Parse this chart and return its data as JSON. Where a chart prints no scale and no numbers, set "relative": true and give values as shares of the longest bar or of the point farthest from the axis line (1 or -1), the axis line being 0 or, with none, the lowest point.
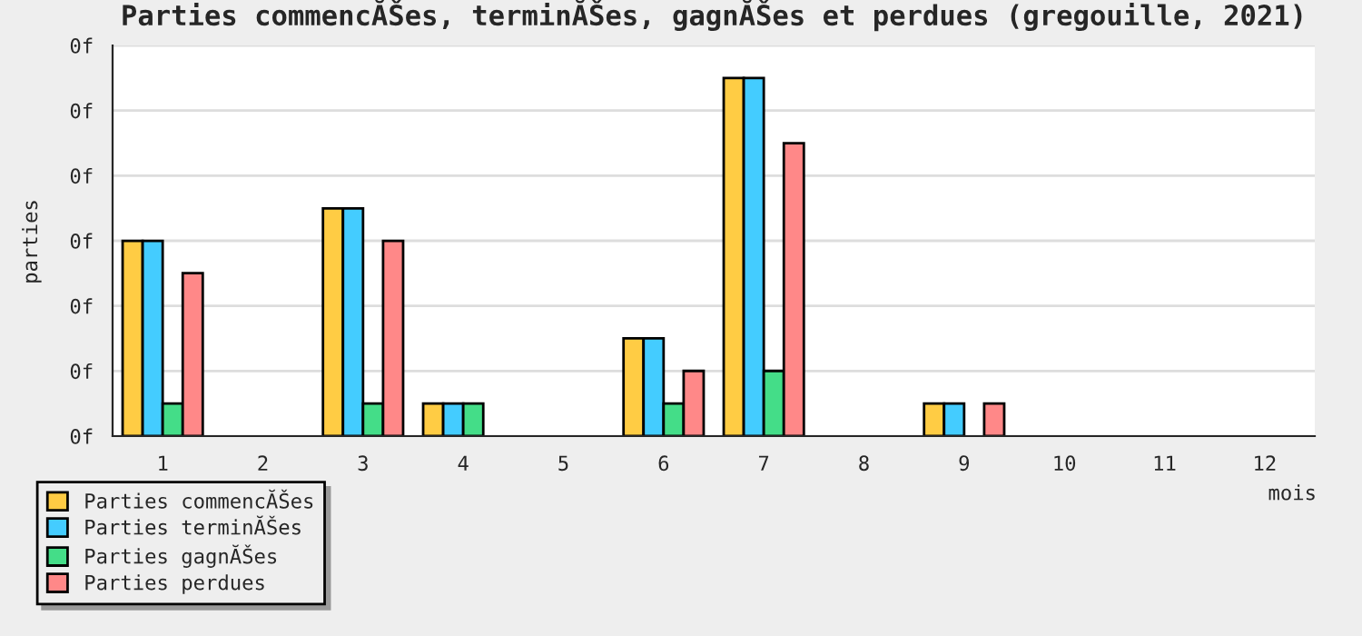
{
  "chart_data": {
    "type": "bar",
    "title": "Parties commencĂŠes, terminĂŠes, gagnĂŠes et perdues (gregouille, 2021)",
    "xlabel": "mois",
    "ylabel": "parties",
    "relative": true,
    "categories": [
      "1",
      "2",
      "3",
      "4",
      "5",
      "6",
      "7",
      "8",
      "9",
      "10",
      "11",
      "12"
    ],
    "series": [
      {
        "name": "Parties commencĂŠes",
        "color": "#ffcc44",
        "values": [
          0.545,
          0,
          0.636,
          0.091,
          0,
          0.273,
          1,
          0,
          0.091,
          0,
          0,
          0
        ]
      },
      {
        "name": "Parties terminĂŠes",
        "color": "#44ccff",
        "values": [
          0.545,
          0,
          0.636,
          0.091,
          0,
          0.273,
          1,
          0,
          0.091,
          0,
          0,
          0
        ]
      },
      {
        "name": "Parties gagnĂŠes",
        "color": "#44dd88",
        "values": [
          0.091,
          0,
          0.091,
          0.091,
          0,
          0.091,
          0.182,
          0,
          0,
          0,
          0,
          0
        ]
      },
      {
        "name": "Parties perdues",
        "color": "#ff8888",
        "values": [
          0.455,
          0,
          0.545,
          0,
          0,
          0.182,
          0.818,
          0,
          0.091,
          0,
          0,
          0
        ]
      }
    ],
    "annotations": [
      "0f",
      "0f",
      "0f",
      "0f",
      "0f",
      "0f",
      "0f"
    ],
    "grid": "y",
    "legend": "bottom left"
  }
}
